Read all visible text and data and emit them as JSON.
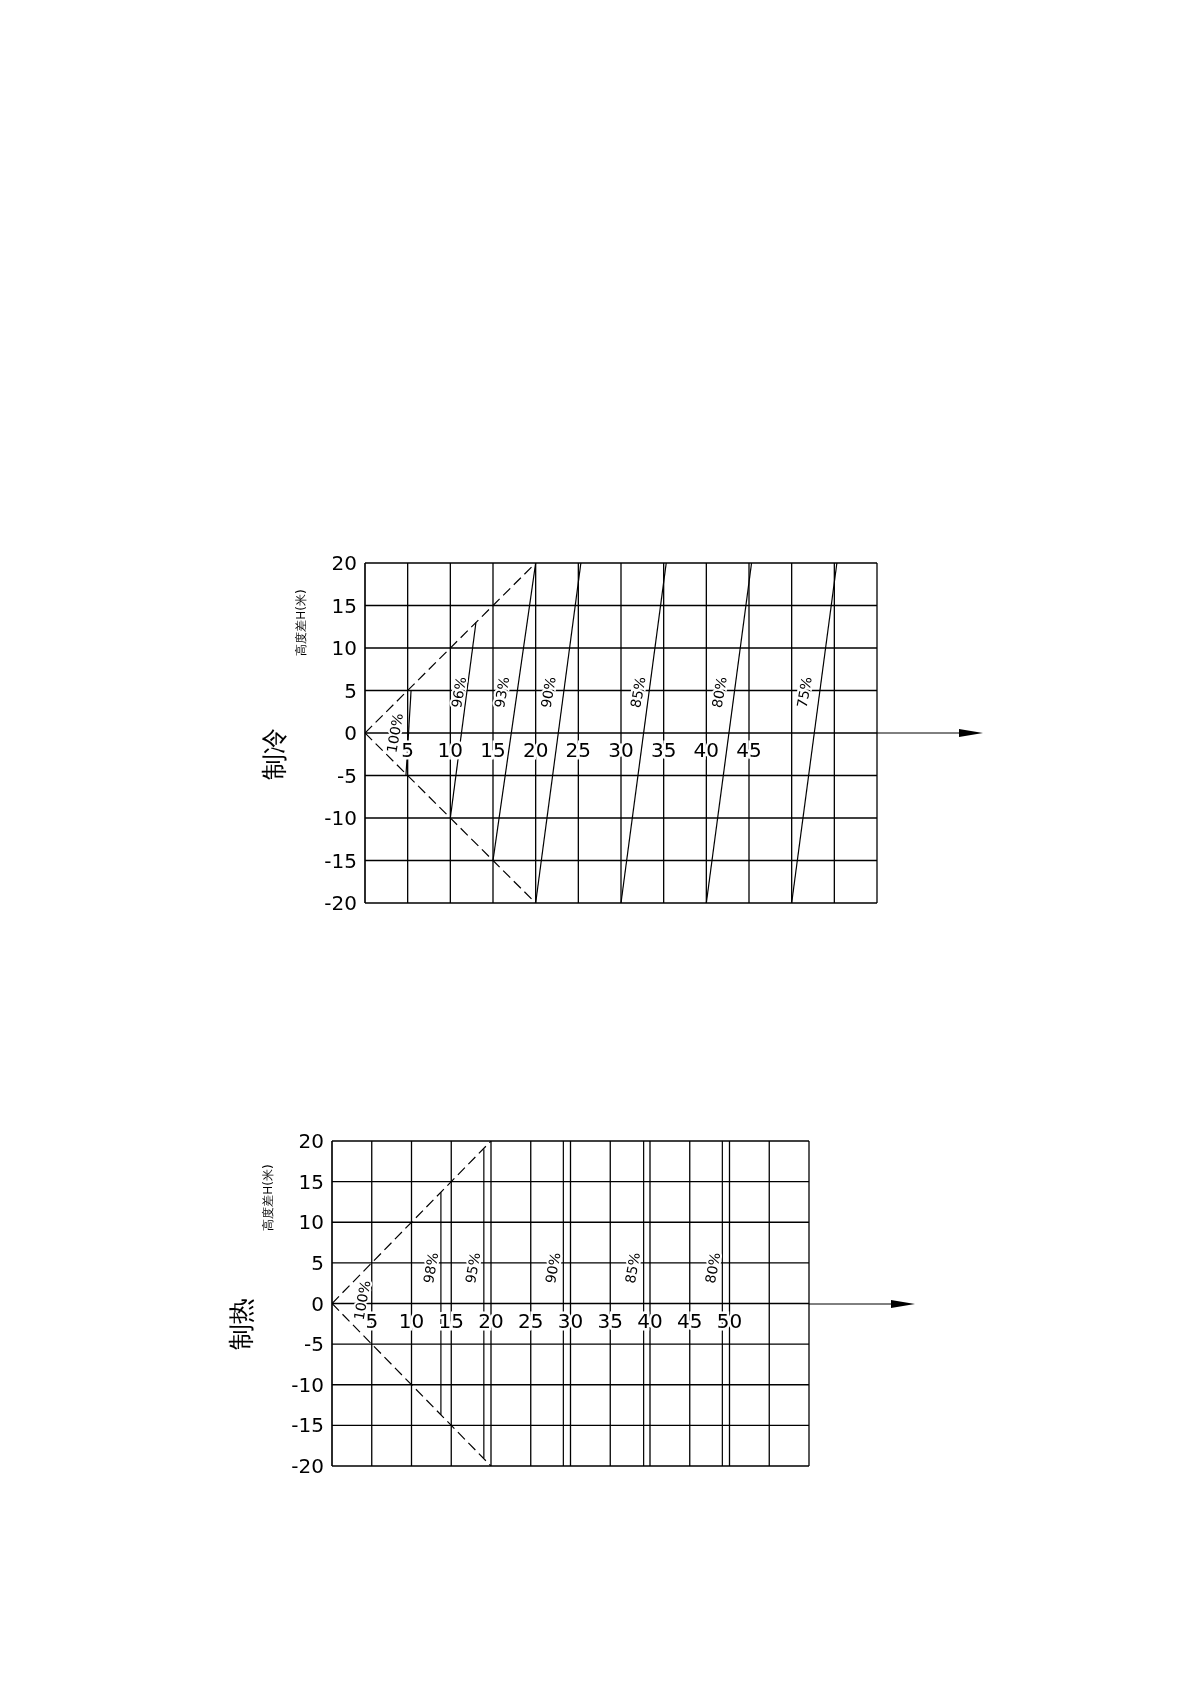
{
  "chart_data": [
    {
      "type": "line",
      "title": "制冷",
      "ylabel": "高度差H(米)",
      "xlim": [
        0,
        60
      ],
      "xticks": [
        {
          "value": 0,
          "label": null
        },
        5,
        10,
        15,
        20,
        25,
        30,
        35,
        40,
        45,
        {
          "value": 50,
          "label": null
        },
        {
          "value": 55,
          "label": null
        },
        {
          "value": 60,
          "label": null
        }
      ],
      "ylim": [
        -20,
        20
      ],
      "yticks": [
        -20,
        -15,
        -10,
        -5,
        0,
        5,
        10,
        15,
        20
      ],
      "grid": true,
      "series": [
        {
          "color": "#000000",
          "line_style": "dashed",
          "x": [
            0,
            20
          ],
          "values": [
            0,
            20
          ]
        },
        {
          "color": "#000000",
          "line_style": "dashed",
          "x": [
            0,
            20
          ],
          "values": [
            0,
            -20
          ]
        },
        {
          "color": "#000000",
          "x": [
            4.8,
            5.4
          ],
          "values": [
            -5,
            5
          ]
        },
        {
          "color": "#000000",
          "x": [
            10,
            13
          ],
          "values": [
            -10,
            13
          ]
        },
        {
          "color": "#000000",
          "x": [
            15,
            20
          ],
          "values": [
            -15,
            20
          ]
        },
        {
          "color": "#000000",
          "x": [
            20,
            25.3
          ],
          "values": [
            -20,
            20
          ]
        },
        {
          "color": "#000000",
          "x": [
            30,
            35.3
          ],
          "values": [
            -20,
            20
          ]
        },
        {
          "color": "#000000",
          "x": [
            40,
            45.3
          ],
          "values": [
            -20,
            20
          ]
        },
        {
          "color": "#000000",
          "x": [
            50,
            55.3
          ],
          "values": [
            -20,
            20
          ]
        }
      ],
      "annotations": [
        "100%",
        "96%",
        "93%",
        "90%",
        "85%",
        "80%",
        "75%"
      ]
    },
    {
      "type": "line",
      "title": "制热",
      "ylabel": "高度差H(米)",
      "xlim": [
        0,
        60
      ],
      "xticks": [
        {
          "value": 0,
          "label": null
        },
        5,
        10,
        15,
        20,
        25,
        30,
        35,
        40,
        45,
        50,
        {
          "value": 55,
          "label": null
        },
        {
          "value": 60,
          "label": null
        }
      ],
      "ylim": [
        -20,
        20
      ],
      "yticks": [
        -20,
        -15,
        -10,
        -5,
        0,
        5,
        10,
        15,
        20
      ],
      "grid": true,
      "series": [
        {
          "color": "#000000",
          "line_style": "dashed",
          "x": [
            0,
            20
          ],
          "values": [
            0,
            20
          ]
        },
        {
          "color": "#000000",
          "line_style": "dashed",
          "x": [
            0,
            20
          ],
          "values": [
            0,
            -20
          ]
        },
        {
          "color": "#000000",
          "x": [
            13.7,
            13.7
          ],
          "values": [
            -13.7,
            13.7
          ]
        },
        {
          "color": "#000000",
          "x": [
            19.1,
            19.1
          ],
          "values": [
            -19,
            19
          ]
        },
        {
          "color": "#000000",
          "x": [
            29.1,
            29.1
          ],
          "values": [
            -20,
            20
          ]
        },
        {
          "color": "#000000",
          "x": [
            39.2,
            39.2
          ],
          "values": [
            -20,
            20
          ]
        },
        {
          "color": "#000000",
          "x": [
            49.1,
            49.1
          ],
          "values": [
            -20,
            20
          ]
        }
      ],
      "annotations": [
        "100%",
        "98%",
        "95%",
        "90%",
        "85%",
        "80%"
      ]
    }
  ]
}
